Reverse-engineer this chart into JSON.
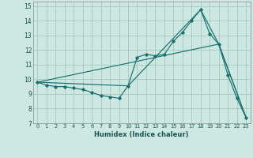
{
  "xlabel": "Humidex (Indice chaleur)",
  "xlim": [
    -0.5,
    23.5
  ],
  "ylim": [
    7,
    15.3
  ],
  "xticks": [
    0,
    1,
    2,
    3,
    4,
    5,
    6,
    7,
    8,
    9,
    10,
    11,
    12,
    13,
    14,
    15,
    16,
    17,
    18,
    19,
    20,
    21,
    22,
    23
  ],
  "yticks": [
    7,
    8,
    9,
    10,
    11,
    12,
    13,
    14,
    15
  ],
  "bg_color": "#cce8e0",
  "grid_color": "#aaccc4",
  "line_color": "#1a7070",
  "line1_x": [
    0,
    1,
    2,
    3,
    4,
    5,
    6,
    7,
    8,
    9,
    10,
    11,
    12,
    13,
    14,
    15,
    16,
    17,
    18,
    19,
    20,
    21,
    22,
    23
  ],
  "line1_y": [
    9.8,
    9.6,
    9.5,
    9.5,
    9.4,
    9.3,
    9.1,
    8.9,
    8.8,
    8.7,
    9.55,
    11.5,
    11.7,
    11.6,
    11.7,
    12.6,
    13.2,
    14.0,
    14.75,
    13.1,
    12.4,
    10.3,
    8.7,
    7.4
  ],
  "line2_x": [
    0,
    10,
    18,
    20,
    23
  ],
  "line2_y": [
    9.8,
    9.55,
    14.75,
    12.4,
    7.4
  ],
  "line3_x": [
    0,
    20,
    23
  ],
  "line3_y": [
    9.8,
    12.4,
    7.4
  ]
}
